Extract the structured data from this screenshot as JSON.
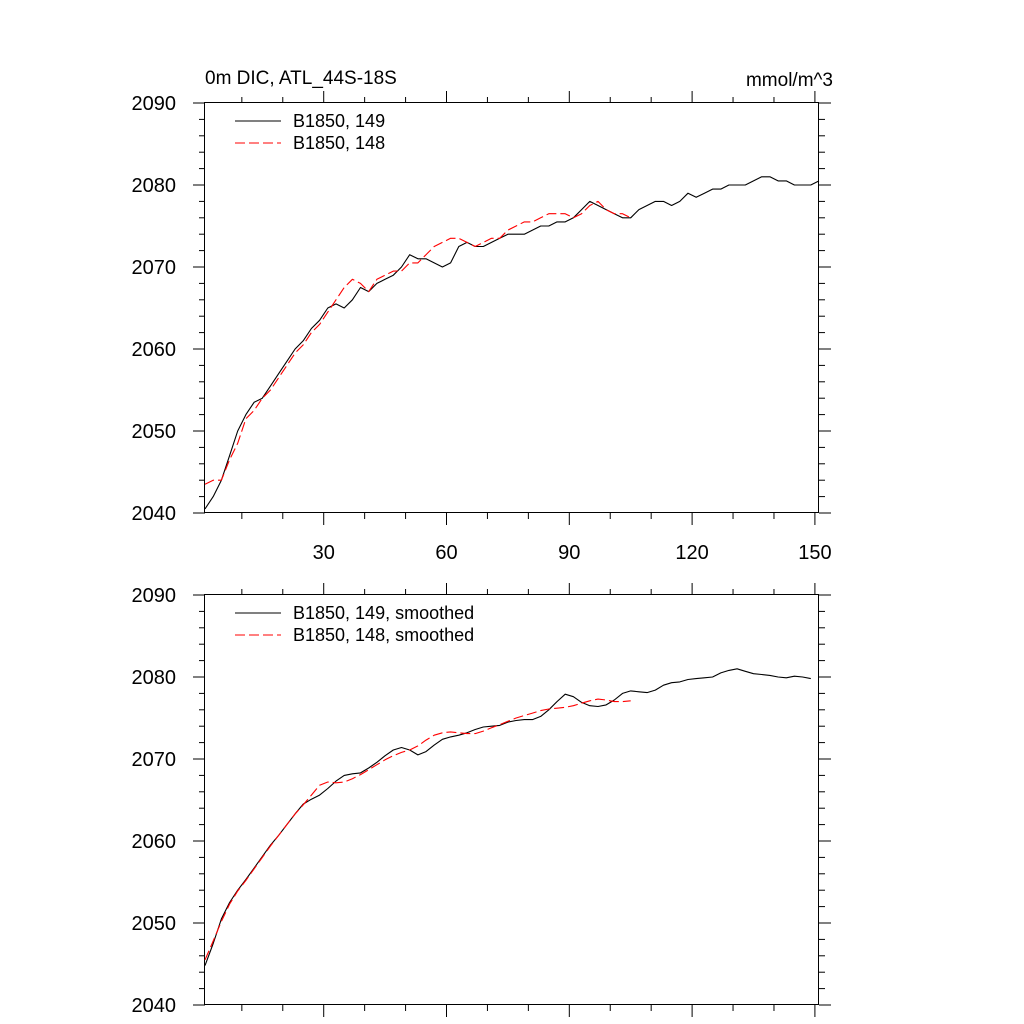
{
  "chart_data": [
    {
      "type": "line",
      "title": "0m DIC, ATL_44S-18S",
      "units_label": "mmol/m^3",
      "xlim": [
        1,
        151
      ],
      "ylim": [
        2040,
        2090
      ],
      "x_ticks": [
        30,
        60,
        90,
        120,
        150
      ],
      "x_tick_labels": [
        "30",
        "60",
        "90",
        "120",
        "150"
      ],
      "y_ticks": [
        2040,
        2050,
        2060,
        2070,
        2080,
        2090
      ],
      "y_tick_labels": [
        "2040",
        "2050",
        "2060",
        "2070",
        "2080",
        "2090"
      ],
      "legend_position": "top-left",
      "series": [
        {
          "name": "B1850, 149",
          "color": "#000000",
          "dash": "solid",
          "x": [
            1,
            3,
            5,
            7,
            9,
            11,
            13,
            15,
            17,
            19,
            21,
            23,
            25,
            27,
            29,
            31,
            33,
            35,
            37,
            39,
            41,
            43,
            45,
            47,
            49,
            51,
            53,
            55,
            57,
            59,
            61,
            63,
            65,
            67,
            69,
            71,
            73,
            75,
            77,
            79,
            81,
            83,
            85,
            87,
            89,
            91,
            93,
            95,
            97,
            99,
            101,
            103,
            105,
            107,
            109,
            111,
            113,
            115,
            117,
            119,
            121,
            123,
            125,
            127,
            129,
            131,
            133,
            135,
            137,
            139,
            141,
            143,
            145,
            147,
            149,
            151
          ],
          "y": [
            2040.5,
            2042.0,
            2044.0,
            2047.0,
            2050.0,
            2052.0,
            2053.5,
            2054.0,
            2055.5,
            2057.0,
            2058.5,
            2060.0,
            2061.0,
            2062.5,
            2063.5,
            2065.0,
            2065.5,
            2065.0,
            2066.0,
            2067.5,
            2067.0,
            2068.0,
            2068.5,
            2069.0,
            2070.0,
            2071.5,
            2071.0,
            2071.0,
            2070.5,
            2070.0,
            2070.5,
            2072.5,
            2073.0,
            2072.5,
            2072.5,
            2073.0,
            2073.5,
            2074.0,
            2074.0,
            2074.0,
            2074.5,
            2075.0,
            2075.0,
            2075.5,
            2075.5,
            2076.0,
            2077.0,
            2078.0,
            2077.5,
            2077.0,
            2076.5,
            2076.0,
            2076.0,
            2077.0,
            2077.5,
            2078.0,
            2078.0,
            2077.5,
            2078.0,
            2079.0,
            2078.5,
            2079.0,
            2079.5,
            2079.5,
            2080.0,
            2080.0,
            2080.0,
            2080.5,
            2081.0,
            2081.0,
            2080.5,
            2080.5,
            2080.0,
            2080.0,
            2080.0,
            2080.5
          ]
        },
        {
          "name": "B1850, 148",
          "color": "#ff0000",
          "dash": "dashed",
          "x": [
            1,
            3,
            5,
            7,
            9,
            11,
            13,
            15,
            17,
            19,
            21,
            23,
            25,
            27,
            29,
            31,
            33,
            35,
            37,
            39,
            41,
            43,
            45,
            47,
            49,
            51,
            53,
            55,
            57,
            59,
            61,
            63,
            65,
            67,
            69,
            71,
            73,
            75,
            77,
            79,
            81,
            83,
            85,
            87,
            89,
            91,
            93,
            95,
            97,
            99,
            101,
            103,
            105
          ],
          "y": [
            2043.5,
            2044.0,
            2044.0,
            2046.5,
            2048.5,
            2051.5,
            2052.5,
            2054.0,
            2055.0,
            2056.5,
            2058.0,
            2059.5,
            2060.5,
            2062.0,
            2063.0,
            2064.5,
            2066.0,
            2067.5,
            2068.5,
            2068.0,
            2067.0,
            2068.5,
            2069.0,
            2069.5,
            2069.5,
            2070.5,
            2070.5,
            2071.5,
            2072.5,
            2073.0,
            2073.5,
            2073.5,
            2073.0,
            2072.5,
            2073.0,
            2073.5,
            2073.5,
            2074.5,
            2075.0,
            2075.5,
            2075.5,
            2076.0,
            2076.5,
            2076.5,
            2076.5,
            2076.0,
            2076.5,
            2077.5,
            2078.0,
            2077.0,
            2076.5,
            2076.5,
            2076.0
          ]
        }
      ]
    },
    {
      "type": "line",
      "title": "",
      "xlim": [
        1,
        151
      ],
      "ylim": [
        2040,
        2090
      ],
      "x_ticks": [
        30,
        60,
        90,
        120,
        150
      ],
      "x_tick_labels": [],
      "y_ticks": [
        2040,
        2050,
        2060,
        2070,
        2080,
        2090
      ],
      "y_tick_labels": [
        "2040",
        "2050",
        "2060",
        "2070",
        "2080",
        "2090"
      ],
      "legend_position": "top-left",
      "series": [
        {
          "name": "B1850, 149, smoothed",
          "color": "#000000",
          "dash": "solid",
          "x": [
            1,
            3,
            5,
            7,
            9,
            11,
            13,
            15,
            17,
            19,
            21,
            23,
            25,
            27,
            29,
            31,
            33,
            35,
            37,
            39,
            41,
            43,
            45,
            47,
            49,
            51,
            53,
            55,
            57,
            59,
            61,
            63,
            65,
            67,
            69,
            71,
            73,
            75,
            77,
            79,
            81,
            83,
            85,
            87,
            89,
            91,
            93,
            95,
            97,
            99,
            101,
            103,
            105,
            107,
            109,
            111,
            113,
            115,
            117,
            119,
            121,
            123,
            125,
            127,
            129,
            131,
            133,
            135,
            137,
            139,
            141,
            143,
            145,
            147,
            149
          ],
          "y": [
            2044.8,
            2047.5,
            2050.5,
            2052.5,
            2054.0,
            2055.3,
            2056.7,
            2058.1,
            2059.5,
            2060.7,
            2062.0,
            2063.3,
            2064.5,
            2065.1,
            2065.6,
            2066.4,
            2067.3,
            2068.0,
            2068.2,
            2068.3,
            2068.9,
            2069.6,
            2070.4,
            2071.1,
            2071.4,
            2071.1,
            2070.5,
            2070.9,
            2071.7,
            2072.4,
            2072.7,
            2072.9,
            2073.2,
            2073.6,
            2073.9,
            2074.0,
            2074.1,
            2074.5,
            2074.7,
            2074.8,
            2074.8,
            2075.2,
            2076.0,
            2077.0,
            2077.9,
            2077.6,
            2076.9,
            2076.5,
            2076.4,
            2076.6,
            2077.2,
            2078.0,
            2078.3,
            2078.2,
            2078.1,
            2078.4,
            2079.0,
            2079.3,
            2079.4,
            2079.7,
            2079.8,
            2079.9,
            2080.0,
            2080.5,
            2080.8,
            2081.0,
            2080.7,
            2080.4,
            2080.3,
            2080.2,
            2080.0,
            2079.9,
            2080.1,
            2080.0,
            2079.8
          ]
        },
        {
          "name": "B1850, 148, smoothed",
          "color": "#ff0000",
          "dash": "dashed",
          "x": [
            1,
            3,
            5,
            7,
            9,
            11,
            13,
            15,
            17,
            19,
            21,
            23,
            25,
            27,
            29,
            31,
            33,
            35,
            37,
            39,
            41,
            43,
            45,
            47,
            49,
            51,
            53,
            55,
            57,
            59,
            61,
            63,
            65,
            67,
            69,
            71,
            73,
            75,
            77,
            79,
            81,
            83,
            85,
            87,
            89,
            91,
            93,
            95,
            97,
            99,
            101,
            103,
            105
          ],
          "y": [
            2045.5,
            2047.8,
            2050.2,
            2052.3,
            2053.9,
            2055.2,
            2056.6,
            2058.0,
            2059.4,
            2060.7,
            2062.0,
            2063.3,
            2064.4,
            2065.6,
            2066.8,
            2067.2,
            2067.1,
            2067.2,
            2067.6,
            2068.1,
            2068.7,
            2069.3,
            2069.9,
            2070.4,
            2070.8,
            2071.1,
            2071.6,
            2072.3,
            2072.9,
            2073.2,
            2073.3,
            2073.2,
            2073.1,
            2073.1,
            2073.4,
            2073.8,
            2074.2,
            2074.6,
            2075.0,
            2075.3,
            2075.6,
            2075.9,
            2076.1,
            2076.2,
            2076.3,
            2076.5,
            2076.8,
            2077.1,
            2077.3,
            2077.2,
            2077.0,
            2077.0,
            2077.1
          ]
        }
      ]
    }
  ]
}
